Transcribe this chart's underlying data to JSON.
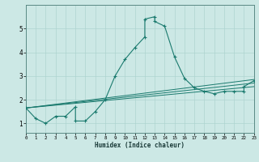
{
  "xlabel": "Humidex (Indice chaleur)",
  "bg_color": "#cce8e5",
  "line_color": "#1a7a6e",
  "grid_color": "#aed4d0",
  "xlim": [
    0,
    23
  ],
  "ylim": [
    0.6,
    6.0
  ],
  "xticks": [
    0,
    1,
    2,
    3,
    4,
    5,
    6,
    7,
    8,
    9,
    10,
    11,
    12,
    13,
    14,
    15,
    16,
    17,
    18,
    19,
    20,
    21,
    22,
    23
  ],
  "yticks": [
    1,
    2,
    3,
    4,
    5
  ],
  "x_main": [
    0,
    1,
    2,
    3,
    4,
    5,
    5,
    6,
    7,
    8,
    9,
    10,
    11,
    12,
    12,
    13,
    13,
    14,
    15,
    16,
    17,
    18,
    19,
    20,
    21,
    22,
    22,
    23
  ],
  "y_main": [
    1.65,
    1.2,
    1.0,
    1.3,
    1.3,
    1.7,
    1.1,
    1.1,
    1.5,
    2.0,
    3.0,
    3.7,
    4.2,
    4.65,
    5.4,
    5.5,
    5.3,
    5.1,
    3.8,
    2.9,
    2.5,
    2.35,
    2.25,
    2.35,
    2.35,
    2.35,
    2.55,
    2.8
  ],
  "trend_lines": [
    {
      "x0": 0,
      "x1": 23,
      "y0": 1.65,
      "y1": 2.85
    },
    {
      "x0": 0,
      "x1": 23,
      "y0": 1.65,
      "y1": 2.7
    },
    {
      "x0": 0,
      "x1": 23,
      "y0": 1.65,
      "y1": 2.55
    }
  ]
}
